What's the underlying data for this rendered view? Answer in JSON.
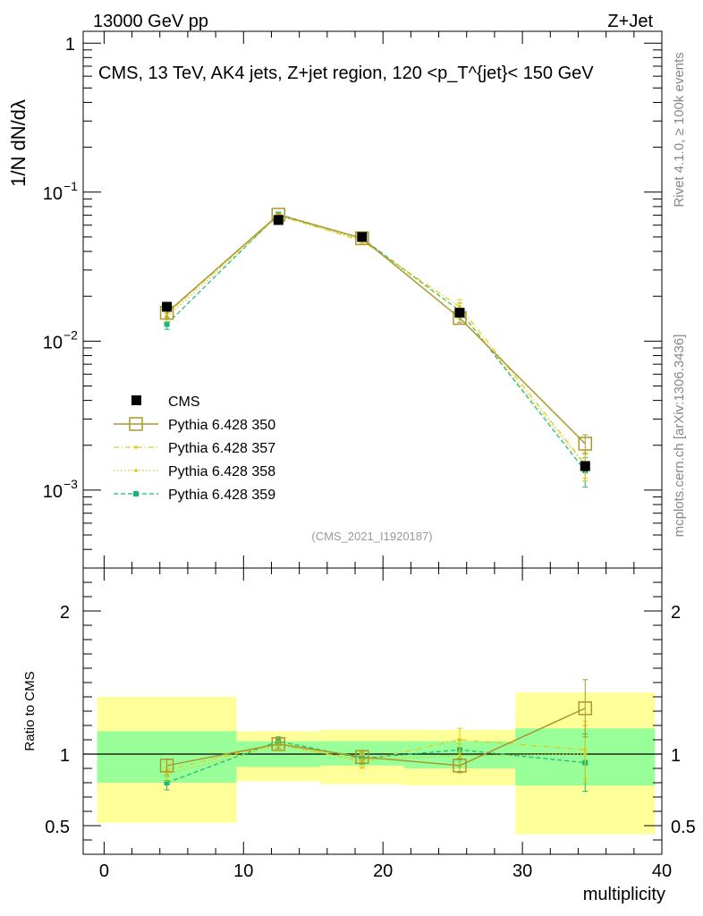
{
  "header": {
    "left": "13000 GeV pp",
    "right": "Z+Jet"
  },
  "side_labels": {
    "rivet": "Rivet 4.1.0, ≥ 100k events",
    "mcplots": "mcplots.cern.ch [arXiv:1306.3436]"
  },
  "colors": {
    "cms": "#000000",
    "p350": "#a89a2e",
    "p357": "#e6c619",
    "p358": "#c9cc14",
    "p359": "#14b87a",
    "band_inner": "#99ff99",
    "band_outer": "#ffff99"
  },
  "chart_data": [
    {
      "type": "scatter",
      "title": "CMS, 13 TeV, AK4 jets, Z+jet region, 120 <p_T^{jet}< 150 GeV",
      "watermark": "(CMS_2021_I1920187)",
      "ylabel": "1/N dN/dλ",
      "yscale": "log",
      "ylim": [
        0.0003,
        1.2
      ],
      "xlim": [
        -1.5,
        40
      ],
      "y_ticks": [
        "10^-3",
        "10^-2",
        "10^-1",
        "1"
      ],
      "legend_position": "lower-left",
      "x": [
        4.5,
        12.5,
        18.5,
        25.5,
        34.5
      ],
      "series": [
        {
          "name": "CMS",
          "values": [
            0.017,
            0.065,
            0.05,
            0.0155,
            0.00145
          ],
          "err": [
            0.001,
            0.003,
            0.002,
            0.001,
            0.0001
          ]
        },
        {
          "name": "Pythia 6.428 350",
          "values": [
            0.0155,
            0.0705,
            0.049,
            0.0143,
            0.00205
          ],
          "err": [
            0.001,
            0.002,
            0.002,
            0.001,
            0.0003
          ]
        },
        {
          "name": "Pythia 6.428 357",
          "values": [
            0.0152,
            0.07,
            0.047,
            0.017,
            0.0015
          ],
          "err": [
            0.001,
            0.002,
            0.002,
            0.002,
            0.0003
          ]
        },
        {
          "name": "Pythia 6.428 358",
          "values": [
            0.0145,
            0.069,
            0.048,
            0.016,
            0.00145
          ],
          "err": [
            0.001,
            0.002,
            0.002,
            0.002,
            0.0003
          ]
        },
        {
          "name": "Pythia 6.428 359",
          "values": [
            0.013,
            0.071,
            0.049,
            0.016,
            0.00135
          ],
          "err": [
            0.001,
            0.002,
            0.002,
            0.002,
            0.0003
          ]
        }
      ]
    },
    {
      "type": "scatter",
      "xlabel": "multiplicity",
      "ylabel": "Ratio to CMS",
      "ylim": [
        0.3,
        2.3
      ],
      "xlim": [
        -1.5,
        40
      ],
      "x_ticks": [
        0,
        10,
        20,
        30,
        40
      ],
      "y_ticks": [
        0.5,
        1,
        2
      ],
      "x": [
        4.5,
        12.5,
        18.5,
        25.5,
        34.5
      ],
      "bins": [
        [
          -0.5,
          9.5
        ],
        [
          9.5,
          15.5
        ],
        [
          15.5,
          21.5
        ],
        [
          21.5,
          29.5
        ],
        [
          29.5,
          39.5
        ]
      ],
      "band_inner": [
        [
          0.8,
          1.16
        ],
        [
          0.91,
          1.09
        ],
        [
          0.92,
          1.09
        ],
        [
          0.9,
          1.09
        ],
        [
          0.78,
          1.18
        ]
      ],
      "band_outer": [
        [
          0.52,
          1.4
        ],
        [
          0.81,
          1.16
        ],
        [
          0.79,
          1.17
        ],
        [
          0.78,
          1.17
        ],
        [
          0.44,
          1.43
        ]
      ],
      "series": [
        {
          "name": "Pythia 6.428 350",
          "values": [
            0.92,
            1.07,
            0.98,
            0.92,
            1.32
          ],
          "err": [
            0.04,
            0.03,
            0.04,
            0.05,
            0.2
          ]
        },
        {
          "name": "Pythia 6.428 357",
          "values": [
            0.89,
            1.07,
            0.95,
            1.1,
            1.03
          ],
          "err": [
            0.05,
            0.03,
            0.05,
            0.08,
            0.2
          ]
        },
        {
          "name": "Pythia 6.428 358",
          "values": [
            0.86,
            1.06,
            0.96,
            0.99,
            1.0
          ],
          "err": [
            0.05,
            0.03,
            0.05,
            0.08,
            0.2
          ]
        },
        {
          "name": "Pythia 6.428 359",
          "values": [
            0.8,
            1.09,
            0.97,
            1.03,
            0.94
          ],
          "err": [
            0.05,
            0.03,
            0.04,
            0.07,
            0.2
          ]
        }
      ]
    }
  ]
}
